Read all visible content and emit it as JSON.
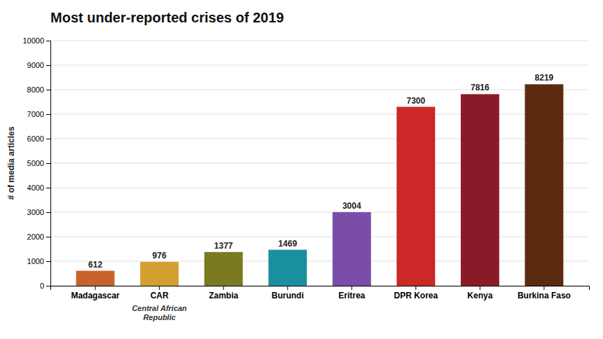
{
  "chart_data": {
    "type": "bar",
    "title": "Most under-reported crises of 2019",
    "ylabel": "# of media articles",
    "categories": [
      "Madagascar",
      "CAR",
      "Zambia",
      "Burundi",
      "Eritrea",
      "DPR Korea",
      "Kenya",
      "Burkina Faso"
    ],
    "values": [
      612,
      976,
      1377,
      1469,
      3004,
      7300,
      7816,
      8219
    ],
    "colors": [
      "#C8622A",
      "#D4A030",
      "#7A7A20",
      "#1A8FA0",
      "#7A4EA8",
      "#CC2828",
      "#8B1A28",
      "#5C2A0E"
    ],
    "ylim": [
      0,
      10000
    ],
    "yticks": [
      0,
      1000,
      2000,
      3000,
      4000,
      5000,
      6000,
      7000,
      8000,
      9000,
      10000
    ],
    "grid": true,
    "data_labels": true,
    "annotations": [
      {
        "text": "Central African\nRepublic",
        "x": "CAR"
      }
    ]
  }
}
